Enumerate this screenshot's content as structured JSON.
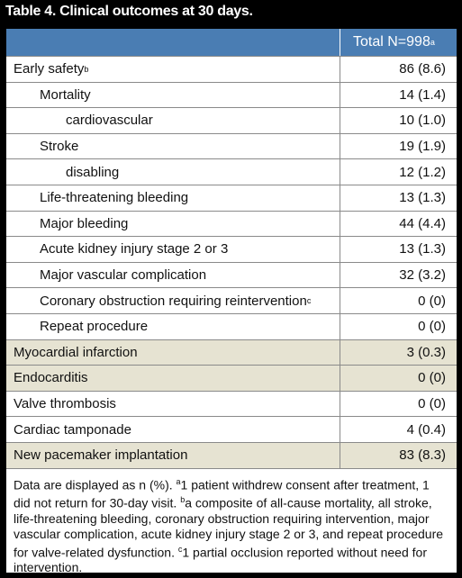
{
  "title": "Table 4. Clinical outcomes at 30 days.",
  "table": {
    "header": {
      "text": "Total N=998",
      "note": "a"
    },
    "rows": [
      {
        "label": "Early safety",
        "note": "b",
        "value": "86 (8.6)",
        "children": [
          {
            "label": "Mortality",
            "value": "14 (1.4)",
            "children": [
              {
                "label": "cardiovascular",
                "value": "10 (1.0)"
              }
            ]
          },
          {
            "label": "Stroke",
            "value": "19 (1.9)",
            "children": [
              {
                "label": "disabling",
                "value": "12 (1.2)"
              }
            ]
          },
          {
            "label": "Life-threatening bleeding",
            "value": "13 (1.3)"
          },
          {
            "label": "Major bleeding",
            "value": "44 (4.4)"
          },
          {
            "label": "Acute kidney injury stage 2 or 3",
            "value": "13 (1.3)"
          },
          {
            "label": "Major vascular complication",
            "value": "32 (3.2)"
          },
          {
            "label": "Coronary obstruction requiring reintervention",
            "note": "c",
            "value": "0 (0)"
          },
          {
            "label": "Repeat procedure",
            "value": "0 (0)"
          }
        ]
      },
      {
        "label": "Myocardial infarction",
        "value": "3 (0.3)"
      },
      {
        "label": "Endocarditis",
        "value": "0 (0)"
      },
      {
        "label": "Valve thrombosis",
        "value": "0 (0)"
      },
      {
        "label": "Cardiac tamponade",
        "value": "4 (0.4)"
      },
      {
        "label": "New pacemaker implantation",
        "value": "83 (8.3)"
      }
    ]
  },
  "footer": {
    "intro": "Data are displayed as n (%).",
    "notes": [
      {
        "mark": "a",
        "text": "1 patient withdrew consent after treatment, 1 did not return for 30-day visit."
      },
      {
        "mark": "b",
        "text": "a composite of all-cause mortality, all stroke, life-threatening bleeding, coronary obstruction requiring intervention, major vascular complication, acute kidney injury stage 2 or 3, and repeat procedure for valve-related dysfunction."
      },
      {
        "mark": "c",
        "text": "1 partial occlusion reported without need for intervention."
      }
    ]
  }
}
